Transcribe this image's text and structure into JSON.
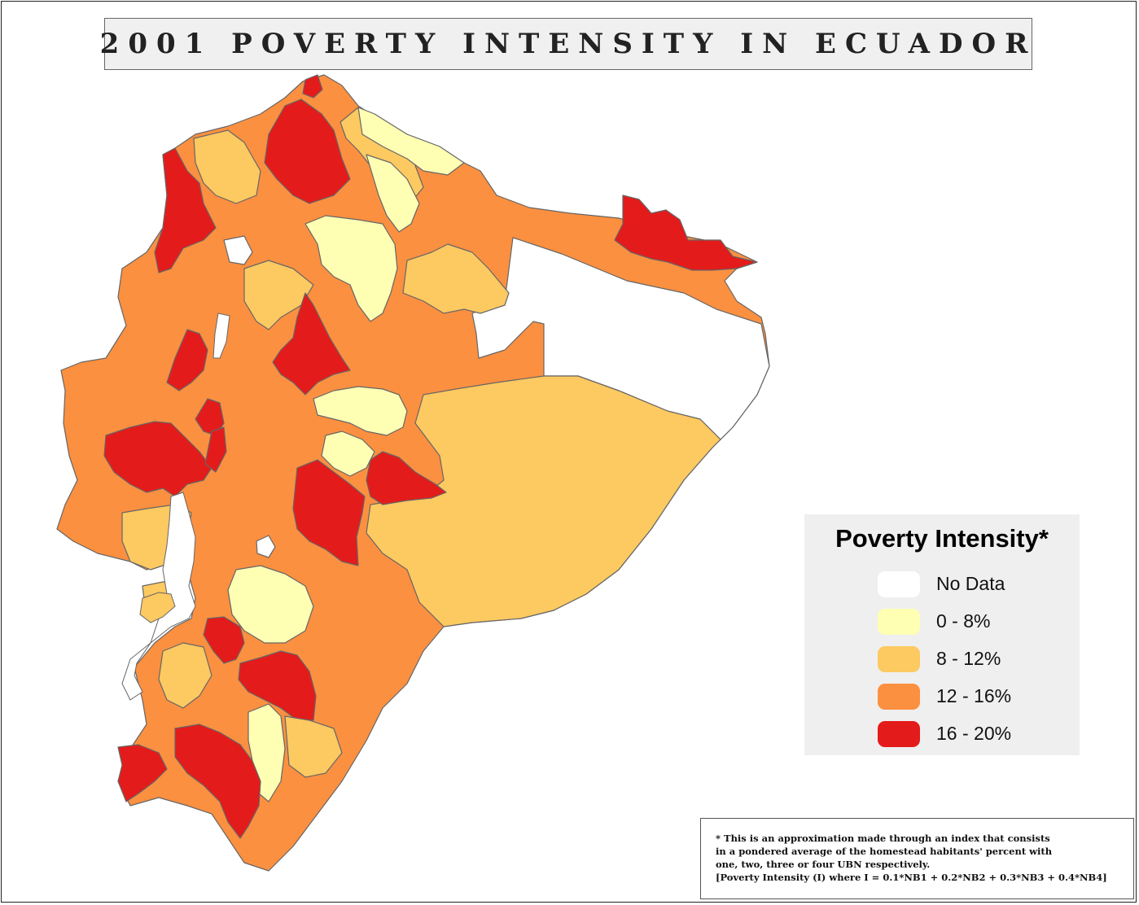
{
  "title": "2001 POVERTY INTENSITY IN ECUADOR",
  "legend": {
    "title": "Poverty Intensity*",
    "items": [
      {
        "label": "No Data",
        "color": "#ffffff"
      },
      {
        "label": "0 - 8%",
        "color": "#ffffb3"
      },
      {
        "label": "8 - 12%",
        "color": "#fdc961"
      },
      {
        "label": "12 - 16%",
        "color": "#fb9040"
      },
      {
        "label": "16 - 20%",
        "color": "#e41b1b"
      }
    ]
  },
  "footnote": {
    "lines": [
      "* This is an approximation made through an index that consists",
      "in a pondered average of the homestead habitants' percent with",
      "one, two, three or four UBN respectively.",
      "[Poverty Intensity (I) where I = 0.1*NB1 + 0.2*NB2 + 0.3*NB3 + 0.4*NB4]"
    ]
  },
  "colors": {
    "border": "#666666",
    "water": "#ffffff"
  }
}
